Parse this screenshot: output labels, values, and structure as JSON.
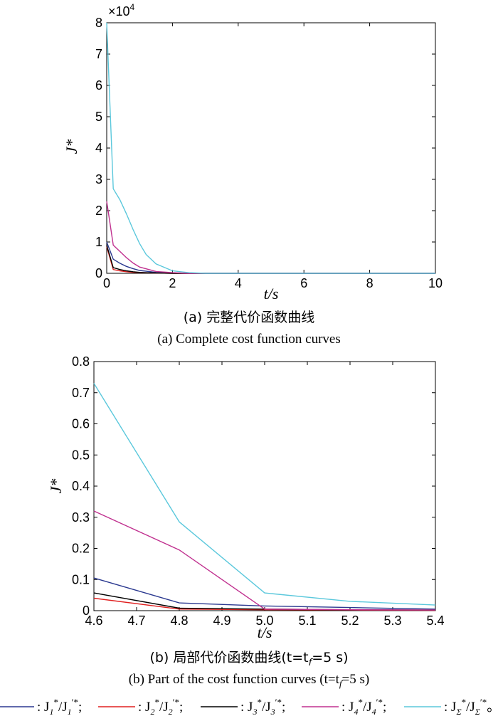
{
  "chart_data": [
    {
      "panel": "a",
      "type": "line",
      "ylabel": "J*",
      "xlabel": "t/s",
      "xlim": [
        0,
        10
      ],
      "ylim": [
        0,
        8
      ],
      "y_multiplier": "×10",
      "y_multiplier_exp": "4",
      "xticks": [
        "0",
        "2",
        "4",
        "6",
        "8",
        "10"
      ],
      "yticks": [
        "0",
        "1",
        "2",
        "3",
        "4",
        "5",
        "6",
        "7",
        "8"
      ],
      "caption_zh": "(a) 完整代价函数曲线",
      "caption_en": "(a) Complete cost function curves",
      "series": [
        {
          "key": "s1",
          "color": "#2b3990",
          "x": [
            0,
            0.2,
            0.4,
            0.6,
            0.8,
            1.0,
            1.5,
            2.0,
            2.5,
            3.0,
            4.0,
            6.0,
            8.0,
            10.0
          ],
          "y": [
            1.0,
            0.45,
            0.32,
            0.22,
            0.15,
            0.09,
            0.03,
            0.01,
            0.0,
            0.0,
            0.0,
            0.0,
            0.0,
            0.0
          ]
        },
        {
          "key": "s2",
          "color": "#e02020",
          "x": [
            0,
            0.2,
            0.4,
            0.6,
            0.8,
            1.0,
            1.5,
            2.0,
            2.5,
            3.0,
            4.0,
            6.0,
            8.0,
            10.0
          ],
          "y": [
            0.85,
            0.12,
            0.08,
            0.05,
            0.03,
            0.02,
            0.01,
            0.0,
            0.0,
            0.0,
            0.0,
            0.0,
            0.0,
            0.0
          ]
        },
        {
          "key": "s3",
          "color": "#000000",
          "x": [
            0,
            0.2,
            0.4,
            0.6,
            0.8,
            1.0,
            1.5,
            2.0,
            2.5,
            3.0,
            4.0,
            6.0,
            8.0,
            10.0
          ],
          "y": [
            0.9,
            0.18,
            0.12,
            0.08,
            0.05,
            0.03,
            0.01,
            0.0,
            0.0,
            0.0,
            0.0,
            0.0,
            0.0,
            0.0
          ]
        },
        {
          "key": "s4",
          "color": "#c0308f",
          "x": [
            0,
            0.2,
            0.4,
            0.6,
            0.8,
            1.0,
            1.5,
            2.0,
            2.5,
            3.0,
            4.0,
            6.0,
            8.0,
            10.0
          ],
          "y": [
            2.3,
            0.9,
            0.7,
            0.5,
            0.33,
            0.2,
            0.06,
            0.02,
            0.0,
            0.0,
            0.0,
            0.0,
            0.0,
            0.0
          ]
        },
        {
          "key": "s5",
          "color": "#5bc8dc",
          "x": [
            0,
            0.2,
            0.4,
            0.6,
            0.8,
            1.0,
            1.2,
            1.5,
            2.0,
            2.5,
            3.0,
            4.0,
            6.0,
            8.0,
            10.0
          ],
          "y": [
            8.0,
            2.7,
            2.35,
            1.9,
            1.4,
            0.95,
            0.6,
            0.3,
            0.08,
            0.02,
            0.0,
            0.0,
            0.0,
            0.0,
            0.0
          ]
        }
      ]
    },
    {
      "panel": "b",
      "type": "line",
      "ylabel": "J*",
      "xlabel": "t/s",
      "xlim": [
        4.6,
        5.4
      ],
      "ylim": [
        0,
        0.8
      ],
      "xticks": [
        "4.6",
        "4.7",
        "4.8",
        "4.9",
        "5.0",
        "5.1",
        "5.2",
        "5.3",
        "5.4"
      ],
      "yticks": [
        "0",
        "0.1",
        "0.2",
        "0.3",
        "0.4",
        "0.5",
        "0.6",
        "0.7",
        "0.8"
      ],
      "caption_zh": "(b) 局部代价函数曲线(t=t",
      "caption_zh_sub": "f",
      "caption_zh_tail": "=5 s)",
      "caption_en": "(b) Part of the cost function curves (t=t",
      "caption_en_sub": "f",
      "caption_en_tail": "=5 s)",
      "series": [
        {
          "key": "s1",
          "color": "#2b3990",
          "x": [
            4.6,
            4.8,
            5.0,
            5.2,
            5.4
          ],
          "y": [
            0.105,
            0.025,
            0.015,
            0.01,
            0.005
          ]
        },
        {
          "key": "s2",
          "color": "#e02020",
          "x": [
            4.6,
            4.8,
            5.0,
            5.2,
            5.4
          ],
          "y": [
            0.04,
            0.005,
            0.003,
            0.002,
            0.001
          ]
        },
        {
          "key": "s3",
          "color": "#000000",
          "x": [
            4.6,
            4.8,
            5.0,
            5.2,
            5.4
          ],
          "y": [
            0.057,
            0.008,
            0.005,
            0.003,
            0.002
          ]
        },
        {
          "key": "s4",
          "color": "#c0308f",
          "x": [
            4.6,
            4.8,
            5.0,
            5.2,
            5.4
          ],
          "y": [
            0.32,
            0.195,
            0.005,
            0.003,
            0.002
          ]
        },
        {
          "key": "s5",
          "color": "#5bc8dc",
          "x": [
            4.6,
            4.8,
            5.0,
            5.2,
            5.4
          ],
          "y": [
            0.73,
            0.285,
            0.057,
            0.03,
            0.018
          ]
        }
      ]
    }
  ],
  "legend": [
    {
      "key": "s1",
      "color": "#2b3990",
      "prefix": ": J",
      "sub1": "1",
      "mid": "/J",
      "sub2": "1",
      "sup2": "′*",
      "tail": ";"
    },
    {
      "key": "s2",
      "color": "#e02020",
      "prefix": ": J",
      "sub1": "2",
      "mid": "/J",
      "sub2": "2",
      "sup2": "′*",
      "tail": ";"
    },
    {
      "key": "s3",
      "color": "#000000",
      "prefix": ": J",
      "sub1": "3",
      "mid": "/J",
      "sub2": "3",
      "sup2": "′*",
      "tail": ";"
    },
    {
      "key": "s4",
      "color": "#c0308f",
      "prefix": ": J",
      "sub1": "4",
      "mid": "/J",
      "sub2": "4",
      "sup2": "′*",
      "tail": ";"
    },
    {
      "key": "s5",
      "color": "#5bc8dc",
      "prefix": ": J",
      "sub1": "Σ",
      "mid": "/J",
      "sub2": "Σ",
      "sup2": "′*",
      "tail": "。"
    }
  ],
  "legend_star": "*"
}
